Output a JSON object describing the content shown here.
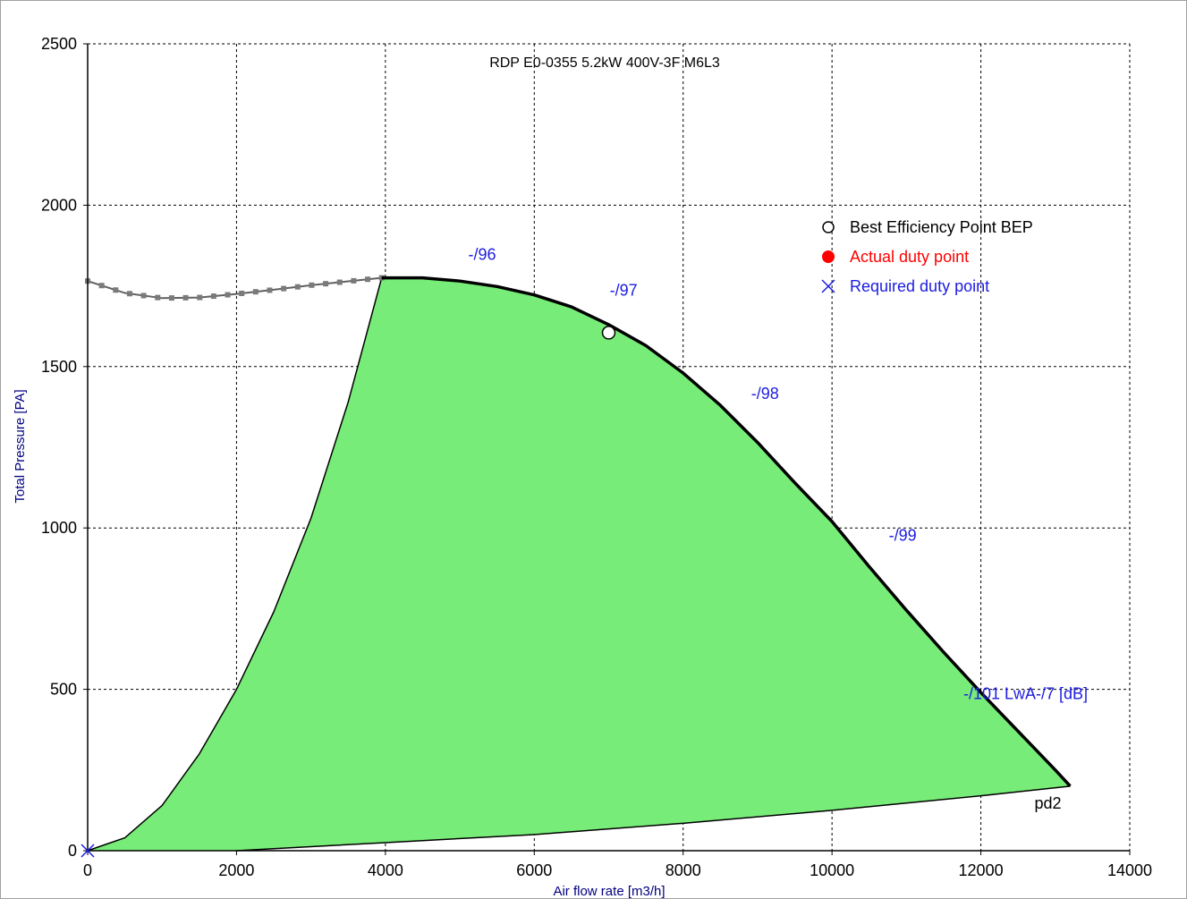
{
  "chart_data": {
    "type": "line",
    "title": "RDP E0-0355 5.2kW 400V-3F M6L3",
    "xlabel": "Air flow rate [m3/h]",
    "ylabel": "Total Pressure [PA]",
    "xlim": [
      0,
      14000
    ],
    "ylim": [
      0,
      2500
    ],
    "x_ticks": [
      0,
      2000,
      4000,
      6000,
      8000,
      10000,
      12000,
      14000
    ],
    "y_ticks": [
      0,
      500,
      1000,
      1500,
      2000,
      2500
    ],
    "x_tick_labels": [
      "0",
      "2000",
      "4000",
      "6000",
      "8000",
      "10000",
      "12000",
      "14000"
    ],
    "y_tick_labels": [
      "0",
      "500",
      "1000",
      "1500",
      "2000",
      "2500"
    ],
    "grid": true,
    "series": [
      {
        "role": "unstable-region",
        "style": "dotted-square-markers",
        "x": [
          0,
          500,
          1000,
          1500,
          2000,
          2500,
          3000,
          3500,
          3950
        ],
        "y": [
          1765,
          1728,
          1712,
          1714,
          1725,
          1738,
          1752,
          1764,
          1775
        ]
      },
      {
        "role": "fan-curve",
        "style": "thick-black",
        "x": [
          3950,
          4500,
          5000,
          5500,
          6000,
          6500,
          7000,
          7500,
          8000,
          8500,
          9000,
          9500,
          10000,
          10500,
          11000,
          11500,
          12000,
          12500,
          13000,
          13200
        ],
        "y": [
          1775,
          1775,
          1765,
          1748,
          1722,
          1685,
          1630,
          1565,
          1480,
          1380,
          1265,
          1140,
          1020,
          880,
          745,
          615,
          490,
          370,
          250,
          200
        ]
      },
      {
        "role": "left-boundary",
        "style": "thin-black",
        "x": [
          0,
          500,
          1000,
          1500,
          2000,
          2500,
          3000,
          3500,
          3950
        ],
        "y": [
          0,
          40,
          140,
          300,
          500,
          740,
          1030,
          1390,
          1775
        ]
      },
      {
        "role": "system-curve-pd2",
        "style": "thin-black",
        "x": [
          2000,
          4000,
          6000,
          8000,
          10000,
          12000,
          13200
        ],
        "y": [
          0,
          25,
          50,
          85,
          125,
          170,
          200
        ]
      }
    ],
    "operating_area_fill": "#78ec78",
    "legend": {
      "placement": "top-right",
      "entries": [
        {
          "label": "Best Efficiency Point BEP",
          "marker": "hollow-circle",
          "color": "#000000"
        },
        {
          "label": "Actual duty point",
          "marker": "filled-circle",
          "color": "#ff0000"
        },
        {
          "label": "Required duty point",
          "marker": "x-cross",
          "color": "#1c1ce0"
        }
      ]
    },
    "points": {
      "bep": {
        "x": 7000,
        "y": 1605
      },
      "required_duty_point": {
        "x": 0,
        "y": 0
      }
    },
    "annotations": [
      {
        "text": "-/96",
        "x": 5300,
        "y": 1830
      },
      {
        "text": "-/97",
        "x": 7200,
        "y": 1720
      },
      {
        "text": "-/98",
        "x": 9100,
        "y": 1400
      },
      {
        "text": "-/99",
        "x": 10950,
        "y": 960
      },
      {
        "text": "-/101  LwA-/7 [dB]",
        "x": 12600,
        "y": 470
      },
      {
        "text": "pd2",
        "x": 12900,
        "y": 130,
        "color": "#000000"
      }
    ]
  }
}
